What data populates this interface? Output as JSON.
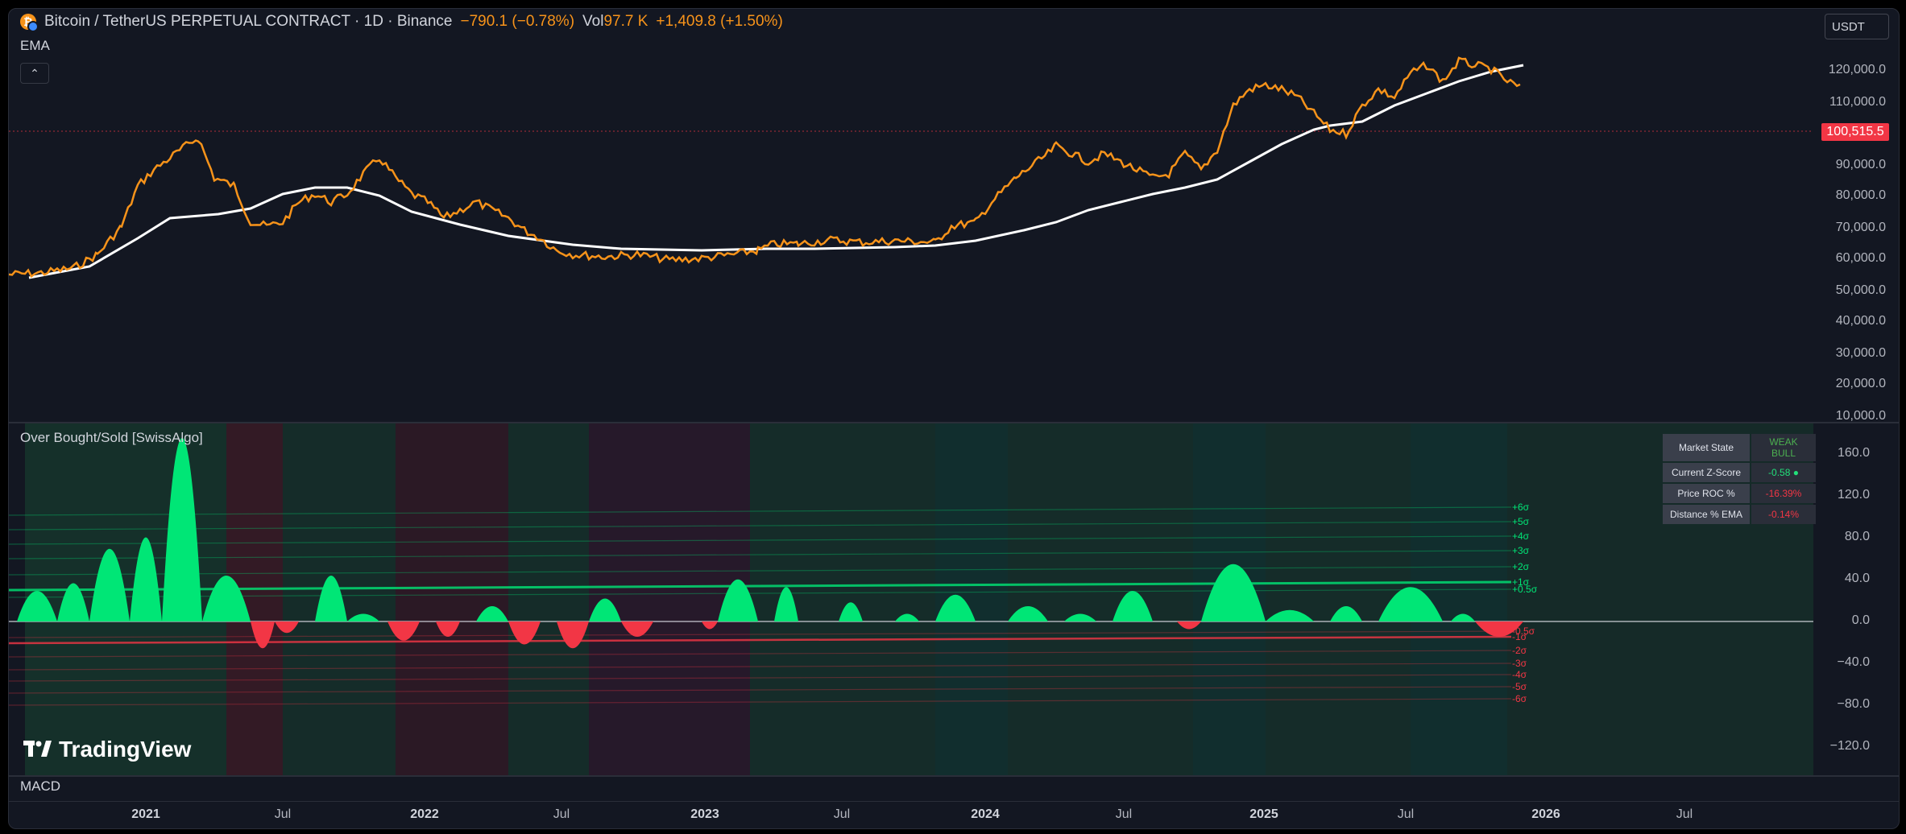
{
  "header": {
    "symbol": "Bitcoin / TetherUS PERPETUAL CONTRACT · 1D · Binance",
    "change": "−790.1 (−0.78%)",
    "vol_label": "Vol",
    "vol_value": "97.7 K",
    "vol_change": "+1,409.8 (+1.50%)",
    "ema_label": "EMA",
    "collapse_icon": "chevron-up-icon",
    "currency_button": "USDT"
  },
  "price_axis": {
    "last_price": "100,515.5",
    "ticks": [
      "120,000.0",
      "110,000.0",
      "90,000.0",
      "80,000.0",
      "70,000.0",
      "60,000.0",
      "50,000.0",
      "40,000.0",
      "30,000.0",
      "20,000.0",
      "10,000.0"
    ]
  },
  "oscillator": {
    "title": "Over Bought/Sold [SwissAlgo]",
    "ticks": [
      "160.0",
      "120.0",
      "80.0",
      "40.0",
      "0.0",
      "−40.0",
      "−80.0",
      "−120.0"
    ],
    "sigma_upper": [
      "+6σ",
      "+5σ",
      "+4σ",
      "+3σ",
      "+2σ",
      "+1σ",
      "+0.5σ"
    ],
    "sigma_lower": [
      "-0.5σ",
      "-1σ",
      "-2σ",
      "-3σ",
      "-4σ",
      "-5σ",
      "-6σ"
    ],
    "table": [
      {
        "label": "Market State",
        "value": "WEAK BULL",
        "color": "#4caf50"
      },
      {
        "label": "Current Z-Score",
        "value": "-0.58 ●",
        "color": "#22e07a"
      },
      {
        "label": "Price ROC %",
        "value": "-16.39%",
        "color": "#f23645"
      },
      {
        "label": "Distance % EMA",
        "value": "-0.14%",
        "color": "#f23645"
      }
    ]
  },
  "macd": {
    "title": "MACD"
  },
  "time_axis": [
    "2021",
    "Jul",
    "2022",
    "Jul",
    "2023",
    "Jul",
    "2024",
    "Jul",
    "2025",
    "Jul",
    "2026",
    "Jul"
  ],
  "branding": {
    "logo_text": "TradingView",
    "logo_icon": "tradingview-logo-icon"
  },
  "colors": {
    "price": "#f7931a",
    "ema": "#ffffff",
    "bull": "#00e676",
    "bear": "#f23645",
    "bg": "#131722"
  }
}
